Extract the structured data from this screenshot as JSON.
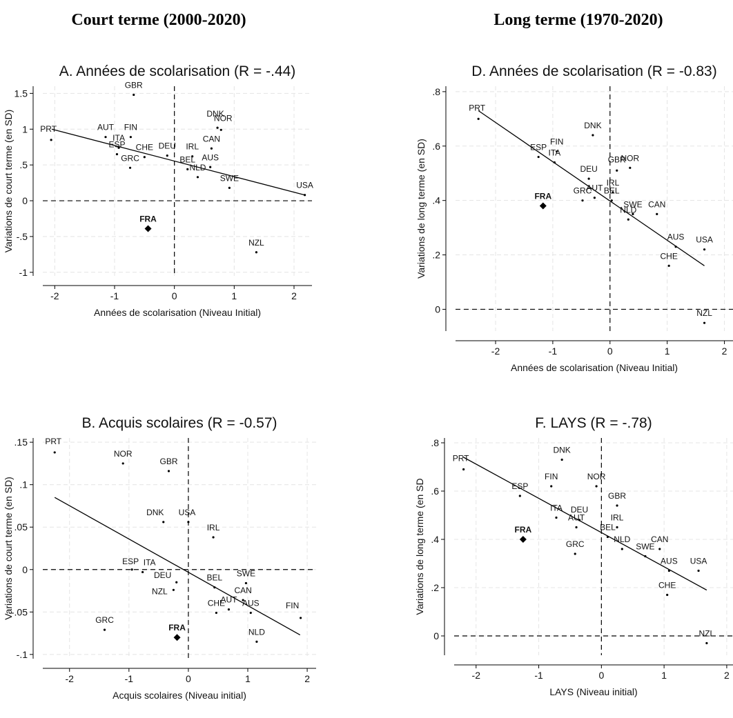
{
  "headings": {
    "left": "Court terme (2000-2020)",
    "right": "Long terme (1970-2020)"
  },
  "chart_data": [
    {
      "type": "scatter",
      "title": "A. Années de scolarisation (R = -.44)",
      "xlabel": "Années de scolarisation (Niveau Initial)",
      "ylabel": "Variations de court terme (en SD)",
      "xlim": [
        -2.2,
        2.3
      ],
      "ylim": [
        -1.05,
        1.6
      ],
      "xticks": [
        -2,
        -1,
        0,
        1,
        2
      ],
      "yticks": [
        -1,
        -0.5,
        0,
        0.5,
        1,
        1.5
      ],
      "ytick_labels": [
        "-1",
        "-.5",
        "0",
        ".5",
        "1",
        "1.5"
      ],
      "grid": true,
      "fit_line": {
        "x": [
          -2.05,
          2.18
        ],
        "y": [
          1.0,
          0.08
        ]
      },
      "highlight": "FRA",
      "points": [
        {
          "label": "PRT",
          "x": -2.06,
          "y": 0.85
        },
        {
          "label": "GBR",
          "x": -0.68,
          "y": 1.48
        },
        {
          "label": "AUT",
          "x": -1.15,
          "y": 0.89
        },
        {
          "label": "FIN",
          "x": -0.73,
          "y": 0.89
        },
        {
          "label": "ITA",
          "x": -0.93,
          "y": 0.74
        },
        {
          "label": "ESP",
          "x": -0.96,
          "y": 0.65
        },
        {
          "label": "CHE",
          "x": -0.5,
          "y": 0.61
        },
        {
          "label": "GRC",
          "x": -0.74,
          "y": 0.46
        },
        {
          "label": "DEU",
          "x": -0.12,
          "y": 0.63
        },
        {
          "label": "IRL",
          "x": 0.3,
          "y": 0.62
        },
        {
          "label": "CAN",
          "x": 0.62,
          "y": 0.73
        },
        {
          "label": "DNK",
          "x": 0.72,
          "y": 1.02
        },
        {
          "label": "NOR",
          "x": 0.78,
          "y": 0.99
        },
        {
          "label": "BEL",
          "x": 0.22,
          "y": 0.44
        },
        {
          "label": "NLD",
          "x": 0.39,
          "y": 0.33
        },
        {
          "label": "AUS",
          "x": 0.6,
          "y": 0.47
        },
        {
          "label": "SWE",
          "x": 0.92,
          "y": 0.18
        },
        {
          "label": "USA",
          "x": 2.18,
          "y": 0.08
        },
        {
          "label": "FRA",
          "x": -0.44,
          "y": -0.39
        },
        {
          "label": "NZL",
          "x": 1.37,
          "y": -0.72
        }
      ]
    },
    {
      "type": "scatter",
      "title": "D. Années de scolarisation (R = -0.83)",
      "xlabel": "Années de scolarisation (Niveau Initial)",
      "ylabel": "Variations de long terme (en SD)",
      "xlim": [
        -2.7,
        2.15
      ],
      "ylim": [
        -0.08,
        0.82
      ],
      "xticks": [
        -2,
        -1,
        0,
        1,
        2
      ],
      "yticks": [
        0,
        0.2,
        0.4,
        0.6,
        0.8
      ],
      "ytick_labels": [
        "0",
        ".2",
        ".4",
        ".6",
        ".8"
      ],
      "grid": true,
      "fit_line": {
        "x": [
          -2.3,
          1.65
        ],
        "y": [
          0.73,
          0.16
        ]
      },
      "highlight": "FRA",
      "points": [
        {
          "label": "PRT",
          "x": -2.3,
          "y": 0.7
        },
        {
          "label": "DNK",
          "x": -0.3,
          "y": 0.64
        },
        {
          "label": "ESP",
          "x": -1.25,
          "y": 0.56
        },
        {
          "label": "FIN",
          "x": -0.93,
          "y": 0.58
        },
        {
          "label": "ITA",
          "x": -0.97,
          "y": 0.54
        },
        {
          "label": "DEU",
          "x": -0.37,
          "y": 0.48
        },
        {
          "label": "GBR",
          "x": 0.12,
          "y": 0.51
        },
        {
          "label": "NOR",
          "x": 0.35,
          "y": 0.52
        },
        {
          "label": "IRL",
          "x": 0.05,
          "y": 0.43
        },
        {
          "label": "BEL",
          "x": 0.03,
          "y": 0.4
        },
        {
          "label": "AUT",
          "x": -0.27,
          "y": 0.41
        },
        {
          "label": "GRC",
          "x": -0.48,
          "y": 0.4
        },
        {
          "label": "FRA",
          "x": -1.17,
          "y": 0.38
        },
        {
          "label": "SWE",
          "x": 0.4,
          "y": 0.35
        },
        {
          "label": "NLD",
          "x": 0.32,
          "y": 0.33
        },
        {
          "label": "CAN",
          "x": 0.82,
          "y": 0.35
        },
        {
          "label": "AUS",
          "x": 1.15,
          "y": 0.23
        },
        {
          "label": "USA",
          "x": 1.65,
          "y": 0.22
        },
        {
          "label": "CHE",
          "x": 1.03,
          "y": 0.16
        },
        {
          "label": "NZL",
          "x": 1.65,
          "y": -0.05
        }
      ]
    },
    {
      "type": "scatter",
      "title": "B. Acquis scolaires (R = -0.57)",
      "xlabel": "Acquis scolaires (Niveau initial)",
      "ylabel": "Variations de court terme (en SD)",
      "xlim": [
        -2.45,
        2.15
      ],
      "ylim": [
        -0.105,
        0.155
      ],
      "xticks": [
        -2,
        -1,
        0,
        1,
        2
      ],
      "yticks": [
        -0.1,
        -0.05,
        0,
        0.05,
        0.1,
        0.15
      ],
      "ytick_labels": [
        "-.1",
        "-.05",
        "0",
        ".05",
        ".1",
        ".15"
      ],
      "grid": true,
      "fit_line": {
        "x": [
          -2.25,
          1.88
        ],
        "y": [
          0.085,
          -0.077
        ]
      },
      "highlight": "FRA",
      "points": [
        {
          "label": "PRT",
          "x": -2.25,
          "y": 0.138
        },
        {
          "label": "NOR",
          "x": -1.1,
          "y": 0.125
        },
        {
          "label": "GBR",
          "x": -0.33,
          "y": 0.116
        },
        {
          "label": "DNK",
          "x": -0.42,
          "y": 0.056
        },
        {
          "label": "USA",
          "x": 0.0,
          "y": 0.056
        },
        {
          "label": "IRL",
          "x": 0.42,
          "y": 0.038
        },
        {
          "label": "ESP",
          "x": -0.95,
          "y": 0.0
        },
        {
          "label": "ITA",
          "x": -0.77,
          "y": -0.003
        },
        {
          "label": "DEU",
          "x": -0.2,
          "y": -0.015
        },
        {
          "label": "NZL",
          "x": -0.25,
          "y": -0.024
        },
        {
          "label": "BEL",
          "x": 0.44,
          "y": -0.021
        },
        {
          "label": "SWE",
          "x": 0.97,
          "y": -0.016
        },
        {
          "label": "CAN",
          "x": 0.92,
          "y": -0.036
        },
        {
          "label": "AUT",
          "x": 0.68,
          "y": -0.047
        },
        {
          "label": "CHE",
          "x": 0.47,
          "y": -0.051
        },
        {
          "label": "AUS",
          "x": 1.05,
          "y": -0.051
        },
        {
          "label": "FIN",
          "x": 1.89,
          "y": -0.057
        },
        {
          "label": "GRC",
          "x": -1.41,
          "y": -0.071
        },
        {
          "label": "FRA",
          "x": -0.19,
          "y": -0.08
        },
        {
          "label": "NLD",
          "x": 1.15,
          "y": -0.085
        }
      ]
    },
    {
      "type": "scatter",
      "title": "F. LAYS (R = -.78)",
      "xlabel": "LAYS (Niveau initial)",
      "ylabel": "Variations de long terme (en SD",
      "xlim": [
        -2.35,
        2.1
      ],
      "ylim": [
        -0.08,
        0.82
      ],
      "xticks": [
        -2,
        -1,
        0,
        1,
        2
      ],
      "yticks": [
        0,
        0.2,
        0.4,
        0.6,
        0.8
      ],
      "ytick_labels": [
        "0",
        ".2",
        ".4",
        ".6",
        ".8"
      ],
      "grid": true,
      "fit_line": {
        "x": [
          -2.2,
          1.68
        ],
        "y": [
          0.74,
          0.19
        ]
      },
      "highlight": "FRA",
      "points": [
        {
          "label": "PRT",
          "x": -2.2,
          "y": 0.69
        },
        {
          "label": "DNK",
          "x": -0.63,
          "y": 0.73
        },
        {
          "label": "ESP",
          "x": -1.3,
          "y": 0.58
        },
        {
          "label": "FIN",
          "x": -0.8,
          "y": 0.62
        },
        {
          "label": "NOR",
          "x": -0.08,
          "y": 0.62
        },
        {
          "label": "GBR",
          "x": 0.25,
          "y": 0.54
        },
        {
          "label": "ITA",
          "x": -0.72,
          "y": 0.49
        },
        {
          "label": "DEU",
          "x": -0.35,
          "y": 0.48
        },
        {
          "label": "AUT",
          "x": -0.4,
          "y": 0.45
        },
        {
          "label": "IRL",
          "x": 0.25,
          "y": 0.45
        },
        {
          "label": "BEL",
          "x": 0.1,
          "y": 0.41
        },
        {
          "label": "FRA",
          "x": -1.25,
          "y": 0.4
        },
        {
          "label": "GRC",
          "x": -0.42,
          "y": 0.34
        },
        {
          "label": "NLD",
          "x": 0.33,
          "y": 0.36
        },
        {
          "label": "SWE",
          "x": 0.7,
          "y": 0.33
        },
        {
          "label": "CAN",
          "x": 0.93,
          "y": 0.36
        },
        {
          "label": "AUS",
          "x": 1.08,
          "y": 0.27
        },
        {
          "label": "USA",
          "x": 1.55,
          "y": 0.27
        },
        {
          "label": "CHE",
          "x": 1.05,
          "y": 0.17
        },
        {
          "label": "NZL",
          "x": 1.68,
          "y": -0.03
        }
      ]
    }
  ]
}
